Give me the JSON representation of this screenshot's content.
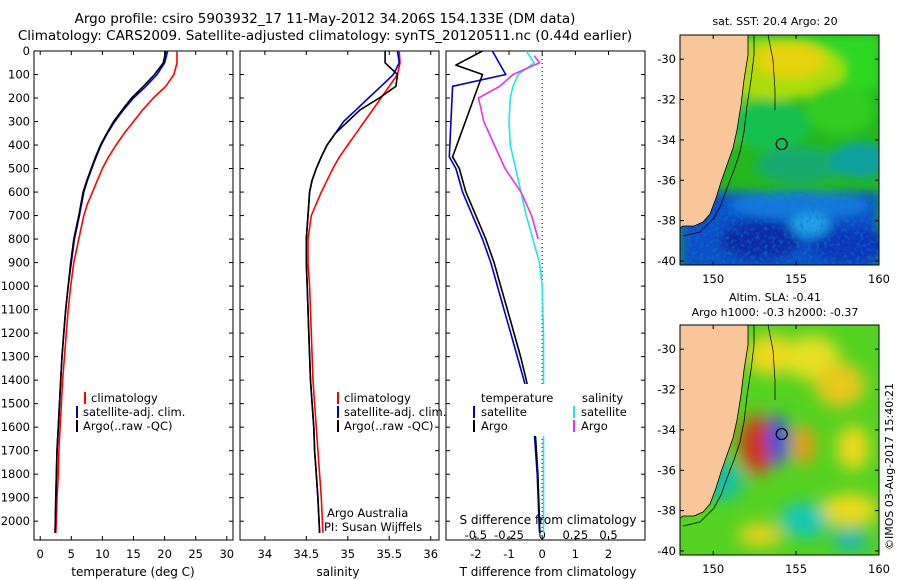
{
  "titles": {
    "line1": "Argo profile: csiro 5903932_17 11-May-2012 34.206S 154.133E (DM data)",
    "line2": "Climatology: CARS2009. Satellite-adjusted climatology: synTS_20120511.nc (0.44d earlier)"
  },
  "map_titles": {
    "sst": "sat. SST: 20.4 Argo: 20",
    "sla": "Altim. SLA: -0.41",
    "sla_h": "Argo h1000: -0.3 h2000: -0.37"
  },
  "credits": {
    "argo_australia": "Argo Australia",
    "pi": "PI: Susan Wijffels",
    "imos": "©IMOS 03-Aug-2017 15:40:21"
  },
  "colors": {
    "climatology": "#ff0000",
    "satellite": "#0000cc",
    "argo": "#000000",
    "cyan": "#22e6e6",
    "magenta": "#e633e6",
    "land": "#f9c69a"
  },
  "chart_data": [
    {
      "type": "line",
      "id": "temperature",
      "xlabel": "temperature (deg C)",
      "ylabel": "",
      "xlim": [
        -1,
        31
      ],
      "ylim": [
        2080,
        0
      ],
      "xticks": [
        0,
        5,
        10,
        15,
        20,
        25,
        30
      ],
      "yticks": [
        0,
        100,
        200,
        300,
        400,
        500,
        600,
        700,
        800,
        900,
        1000,
        1100,
        1200,
        1300,
        1400,
        1500,
        1600,
        1700,
        1800,
        1900,
        2000
      ],
      "legend": [
        "climatology",
        "satellite-adj. clim.",
        "Argo(..raw -QC)"
      ],
      "series": [
        {
          "name": "climatology",
          "color": "#ff0000",
          "x": [
            22,
            22,
            21.5,
            20.2,
            18.2,
            16.5,
            15,
            13.5,
            12.2,
            11,
            10,
            9.2,
            8.4,
            7.6,
            7,
            6.2,
            5.4,
            4.9,
            4.5,
            4.2,
            3.9,
            3.6,
            3.4,
            3.2,
            3,
            2.9,
            2.7,
            2.6,
            2.5
          ],
          "y": [
            0,
            50,
            100,
            150,
            200,
            250,
            300,
            350,
            400,
            450,
            500,
            550,
            600,
            650,
            700,
            800,
            900,
            1000,
            1100,
            1200,
            1300,
            1400,
            1500,
            1600,
            1700,
            1800,
            1900,
            2000,
            2050
          ]
        },
        {
          "name": "satellite-adj. clim.",
          "color": "#0000cc",
          "x": [
            20.5,
            20,
            18.8,
            17,
            15,
            13.4,
            12,
            10.8,
            9.8,
            9,
            8.3,
            7.6,
            7,
            6.3,
            5.5,
            5,
            4.5,
            4.1,
            3.8,
            3.5,
            3.3,
            3.1,
            2.9,
            2.7,
            2.6,
            2.5,
            2.4
          ],
          "y": [
            0,
            50,
            100,
            150,
            200,
            250,
            300,
            350,
            400,
            450,
            500,
            550,
            600,
            700,
            800,
            900,
            1000,
            1100,
            1200,
            1300,
            1400,
            1500,
            1600,
            1700,
            1800,
            1900,
            2050
          ]
        },
        {
          "name": "Argo(..raw -QC)",
          "color": "#000000",
          "x": [
            20.2,
            19.8,
            18.4,
            16.6,
            14.7,
            13.2,
            11.8,
            10.7,
            9.7,
            8.9,
            8.2,
            7.5,
            6.9,
            6.2,
            5.4,
            4.9,
            4.5,
            4.1,
            3.8,
            3.5,
            3.3,
            3.1,
            2.9,
            2.7,
            2.6,
            2.5,
            2.4
          ],
          "y": [
            0,
            50,
            100,
            150,
            200,
            250,
            300,
            350,
            400,
            450,
            500,
            550,
            600,
            700,
            800,
            900,
            1000,
            1100,
            1200,
            1300,
            1400,
            1500,
            1600,
            1700,
            1800,
            1900,
            2050
          ]
        }
      ]
    },
    {
      "type": "line",
      "id": "salinity",
      "xlabel": "salinity",
      "ylabel": "",
      "xlim": [
        33.7,
        36.1
      ],
      "ylim": [
        2080,
        0
      ],
      "xticks": [
        34,
        34.5,
        35,
        35.5,
        36
      ],
      "legend": [
        "climatology",
        "satellite-adj. clim.",
        "Argo(..raw -QC)"
      ],
      "series": [
        {
          "name": "climatology",
          "color": "#ff0000",
          "x": [
            35.62,
            35.63,
            35.6,
            35.5,
            35.4,
            35.3,
            35.2,
            35.1,
            35,
            34.9,
            34.82,
            34.75,
            34.68,
            34.62,
            34.56,
            34.52,
            34.52,
            34.54,
            34.56,
            34.58,
            34.6,
            34.62,
            34.64,
            34.66,
            34.68,
            34.7
          ],
          "y": [
            0,
            50,
            100,
            150,
            200,
            250,
            300,
            350,
            400,
            450,
            500,
            550,
            600,
            650,
            700,
            800,
            900,
            1000,
            1200,
            1400,
            1500,
            1600,
            1700,
            1800,
            1900,
            2050
          ]
        },
        {
          "name": "satellite-adj. clim.",
          "color": "#0000cc",
          "x": [
            35.6,
            35.62,
            35.55,
            35.4,
            35.25,
            35.1,
            34.95,
            34.85,
            34.75,
            34.68,
            34.62,
            34.57,
            34.54,
            34.52,
            34.5,
            34.5,
            34.51,
            34.53,
            34.55,
            34.57,
            34.59,
            34.6,
            34.62,
            34.64,
            34.66
          ],
          "y": [
            0,
            50,
            100,
            150,
            200,
            250,
            300,
            350,
            400,
            450,
            500,
            550,
            600,
            700,
            800,
            900,
            1000,
            1200,
            1400,
            1500,
            1600,
            1700,
            1800,
            1900,
            2050
          ]
        },
        {
          "name": "Argo(..raw -QC)",
          "color": "#000000",
          "x": [
            35.45,
            35.45,
            35.6,
            35.58,
            35.38,
            35.15,
            35,
            34.85,
            34.75,
            34.68,
            34.62,
            34.57,
            34.54,
            34.52,
            34.5,
            34.5,
            34.51,
            34.53,
            34.55,
            34.57,
            34.59,
            34.6,
            34.62,
            34.64,
            34.66
          ],
          "y": [
            0,
            50,
            100,
            150,
            200,
            250,
            300,
            350,
            400,
            450,
            500,
            550,
            600,
            700,
            800,
            900,
            1000,
            1200,
            1400,
            1500,
            1600,
            1700,
            1800,
            1900,
            2050
          ]
        }
      ]
    },
    {
      "type": "line",
      "id": "difference",
      "xlabel": "T difference from climatology",
      "top_label": "S difference from climatology",
      "xlim": [
        -2.9,
        3.1
      ],
      "ylim": [
        2080,
        0
      ],
      "xticks_T": [
        -2,
        -1,
        0,
        1,
        2
      ],
      "xticks_S": [
        -0.5,
        -0.25,
        0,
        0.25,
        0.5
      ],
      "s_to_t_factor": 4,
      "legend_headers": [
        "temperature",
        "salinity"
      ],
      "legend": [
        "satellite",
        "Argo",
        "satellite",
        "Argo"
      ],
      "series": [
        {
          "name": "T satellite",
          "color": "#0000cc",
          "quantity": "T",
          "x": [
            -1.5,
            -1.1,
            -2.7,
            -2.8,
            -2.6,
            -2.4,
            -2.1,
            -1.8,
            -1.55,
            -1.35,
            -1.15,
            -0.95,
            -0.75,
            -0.55,
            -0.38,
            -0.25,
            -0.15,
            -0.08
          ],
          "y": [
            0,
            100,
            150,
            450,
            500,
            600,
            700,
            800,
            900,
            1000,
            1100,
            1200,
            1300,
            1400,
            1500,
            1600,
            1800,
            2050
          ]
        },
        {
          "name": "T Argo",
          "color": "#000000",
          "quantity": "T",
          "x": [
            -1.8,
            -2.6,
            -1.8,
            -2.7,
            -2.5,
            -2.3,
            -2,
            -1.7,
            -1.45,
            -1.25,
            -1.05,
            -0.85,
            -0.65,
            -0.48,
            -0.34,
            -0.22,
            -0.13,
            -0.07
          ],
          "y": [
            0,
            60,
            100,
            450,
            500,
            600,
            700,
            800,
            900,
            1000,
            1100,
            1200,
            1300,
            1400,
            1500,
            1600,
            1800,
            2050
          ]
        },
        {
          "name": "S satellite",
          "color": "#22e6e6",
          "quantity": "S",
          "x": [
            -0.12,
            -0.06,
            -0.18,
            -0.22,
            -0.24,
            -0.25,
            -0.24,
            -0.2,
            -0.16,
            -0.12,
            -0.07,
            -0.02,
            0,
            0.01,
            0.01,
            0.01,
            0.01
          ],
          "y": [
            0,
            50,
            100,
            150,
            200,
            300,
            400,
            500,
            600,
            700,
            800,
            900,
            1000,
            1200,
            1500,
            1800,
            2050
          ]
        },
        {
          "name": "S Argo",
          "color": "#e633e6",
          "quantity": "S",
          "x": [
            -0.06,
            -0.02,
            -0.22,
            -0.32,
            -0.48,
            -0.44,
            -0.36,
            -0.28,
            -0.16,
            -0.08,
            -0.03
          ],
          "y": [
            20,
            50,
            100,
            150,
            200,
            300,
            400,
            500,
            600,
            700,
            800
          ]
        }
      ]
    },
    {
      "type": "heatmap",
      "id": "sst_map",
      "title": "sat. SST: 20.4 Argo: 20",
      "xlim": [
        148,
        160
      ],
      "ylim": [
        -40.2,
        -28.8
      ],
      "xticks": [
        150,
        155,
        160
      ],
      "yticks": [
        -30,
        -32,
        -34,
        -36,
        -38,
        -40
      ],
      "argo_position": [
        154.133,
        -34.206
      ]
    },
    {
      "type": "heatmap",
      "id": "sla_map",
      "title": "Altim. SLA: -0.41",
      "xlim": [
        148,
        160
      ],
      "ylim": [
        -40.2,
        -28.8
      ],
      "xticks": [
        150,
        155,
        160
      ],
      "yticks": [
        -30,
        -32,
        -34,
        -36,
        -38,
        -40
      ],
      "argo_position": [
        154.133,
        -34.206
      ]
    }
  ]
}
